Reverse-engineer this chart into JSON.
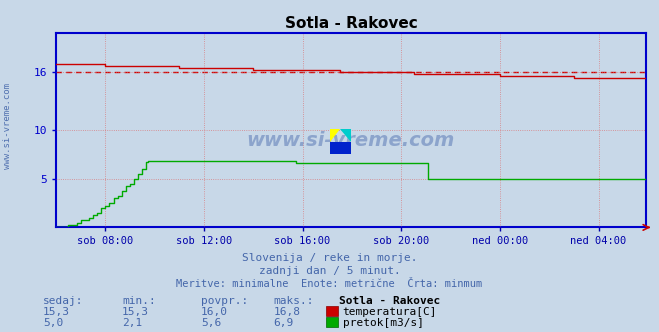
{
  "title": "Sotla - Rakovec",
  "bg_color": "#c8d8e8",
  "plot_bg_color": "#c8d8e8",
  "temp_color": "#cc0000",
  "temp_avg_color": "#cc0000",
  "flow_color": "#00aa00",
  "axis_color": "#0000cc",
  "grid_color": "#dd6666",
  "text_color": "#0000cc",
  "watermark_color": "#4466aa",
  "xlabel_color": "#0000aa",
  "ylim": [
    0,
    20
  ],
  "yticks": [
    5,
    10,
    16
  ],
  "ytick_labels": [
    "5",
    "10",
    "16"
  ],
  "xtick_labels": [
    "sob 08:00",
    "sob 12:00",
    "sob 16:00",
    "sob 20:00",
    "ned 00:00",
    "ned 04:00"
  ],
  "temp_min": 15.3,
  "temp_avg": 16.0,
  "temp_max": 16.8,
  "temp_current": 15.3,
  "flow_min": 2.1,
  "flow_avg": 5.6,
  "flow_max": 6.9,
  "flow_current": 5.0,
  "subtitle1": "Slovenija / reke in morje.",
  "subtitle2": "zadnji dan / 5 minut.",
  "subtitle3": "Meritve: minimalne  Enote: metrične  Črta: minmum",
  "legend_title": "Sotla - Rakovec",
  "col_sedaj": "sedaj:",
  "col_min": "min.:",
  "col_povpr": "povpr.:",
  "col_maks": "maks.:",
  "watermark": "www.si-vreme.com"
}
